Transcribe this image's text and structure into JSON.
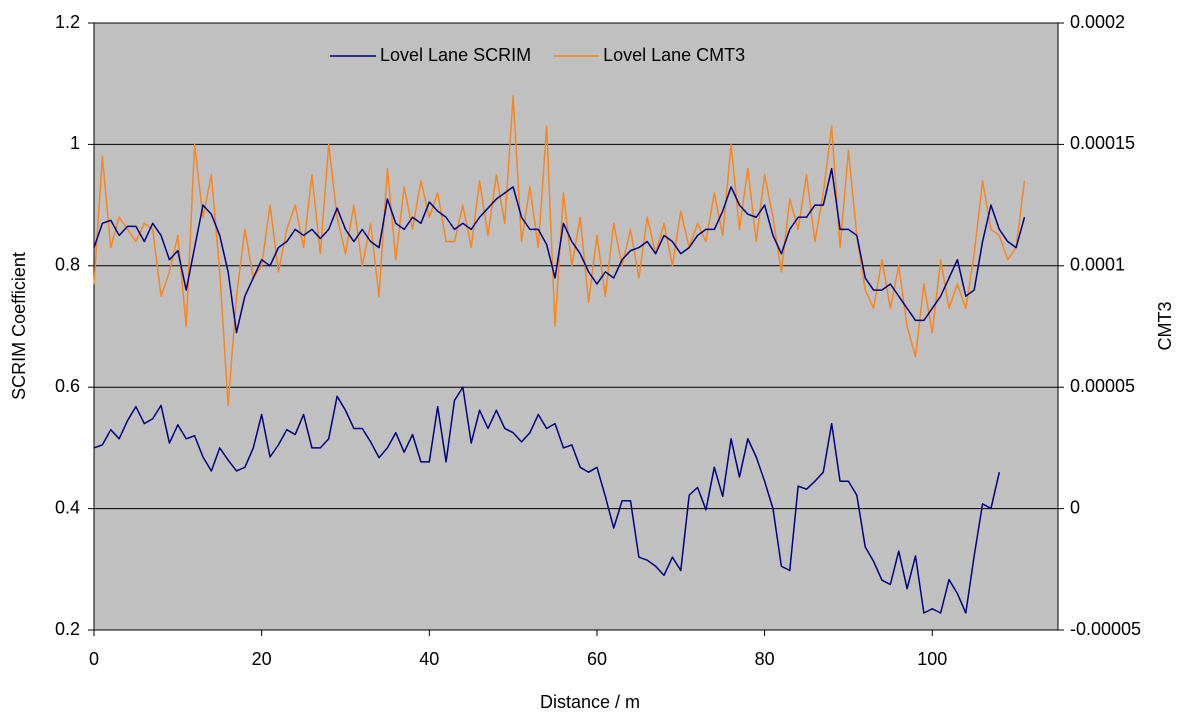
{
  "chart_data": {
    "type": "line",
    "x_label": "Distance / m",
    "y_label": "SCRIM Coefficient",
    "y2_label": "CMT3",
    "x": [
      0,
      1,
      2,
      3,
      4,
      5,
      6,
      7,
      8,
      9,
      10,
      11,
      12,
      13,
      14,
      15,
      16,
      17,
      18,
      19,
      20,
      21,
      22,
      23,
      24,
      25,
      26,
      27,
      28,
      29,
      30,
      31,
      32,
      33,
      34,
      35,
      36,
      37,
      38,
      39,
      40,
      41,
      42,
      43,
      44,
      45,
      46,
      47,
      48,
      49,
      50,
      51,
      52,
      53,
      54,
      55,
      56,
      57,
      58,
      59,
      60,
      61,
      62,
      63,
      64,
      65,
      66,
      67,
      68,
      69,
      70,
      71,
      72,
      73,
      74,
      75,
      76,
      77,
      78,
      79,
      80,
      81,
      82,
      83,
      84,
      85,
      86,
      87,
      88,
      89,
      90,
      91,
      92,
      93,
      94,
      95,
      96,
      97,
      98,
      99,
      100,
      101,
      102,
      103,
      104,
      105,
      106,
      107,
      108,
      109,
      110,
      111
    ],
    "xlim": [
      0,
      115
    ],
    "xticks": [
      0,
      20,
      40,
      60,
      80,
      100
    ],
    "ylim": [
      0.2,
      1.2
    ],
    "yticks": [
      0.2,
      0.4,
      0.6,
      0.8,
      1,
      1.2
    ],
    "y2lim": [
      -5e-05,
      0.0002
    ],
    "y2ticks": [
      -5e-05,
      0,
      5e-05,
      0.0001,
      0.00015,
      0.0002
    ],
    "grid": true,
    "legend": "top",
    "series": [
      {
        "name": "Lovel Lane SCRIM",
        "color": "#000080",
        "values": [
          0.5,
          0.505,
          0.53,
          0.515,
          0.545,
          0.568,
          0.54,
          0.548,
          0.57,
          0.508,
          0.538,
          0.515,
          0.52,
          0.485,
          0.462,
          0.5,
          0.48,
          0.462,
          0.468,
          0.5,
          0.555,
          0.485,
          0.505,
          0.53,
          0.522,
          0.555,
          0.5,
          0.5,
          0.515,
          0.585,
          0.562,
          0.532,
          0.532,
          0.51,
          0.484,
          0.5,
          0.525,
          0.493,
          0.522,
          0.477,
          0.477,
          0.568,
          0.477,
          0.578,
          0.6,
          0.508,
          0.562,
          0.532,
          0.562,
          0.532,
          0.525,
          0.51,
          0.525,
          0.555,
          0.532,
          0.54,
          0.5,
          0.505,
          0.468,
          0.46,
          0.468,
          0.42,
          0.368,
          0.413,
          0.413,
          0.32,
          0.315,
          0.305,
          0.29,
          0.32,
          0.298,
          0.422,
          0.435,
          0.398,
          0.468,
          0.42,
          0.515,
          0.452,
          0.515,
          0.485,
          0.445,
          0.4,
          0.305,
          0.298,
          0.437,
          0.432,
          0.445,
          0.46,
          0.54,
          0.445,
          0.445,
          0.422,
          0.337,
          0.313,
          0.282,
          0.275,
          0.33,
          0.268,
          0.322,
          0.228,
          0.235,
          0.228,
          0.283,
          0.26,
          0.228,
          0.322,
          0.408,
          0.4,
          0.46,
          null,
          null,
          null
        ]
      },
      {
        "name": "Lovel Lane CMT3",
        "color": "#f7861f",
        "axis": "y2",
        "values": [
          9.25e-05,
          0.000145,
          0.0001075,
          0.00012,
          0.000115,
          0.00011,
          0.0001175,
          0.000115,
          8.75e-05,
          9.75e-05,
          0.0001125,
          7.5e-05,
          0.00015,
          0.00012,
          0.0001375,
          9.75e-05,
          4.25e-05,
          8.75e-05,
          0.000115,
          9.5e-05,
          0.0001,
          0.000125,
          9.75e-05,
          0.000115,
          0.000125,
          0.0001075,
          0.0001375,
          0.000105,
          0.00015,
          0.00012,
          0.000105,
          0.000125,
          0.0001,
          0.0001175,
          8.75e-05,
          0.00014,
          0.0001025,
          0.0001325,
          0.000115,
          0.000135,
          0.00012,
          0.00013,
          0.00011,
          0.00011,
          0.000125,
          0.0001075,
          0.000135,
          0.0001125,
          0.0001375,
          0.0001175,
          0.00017,
          0.00011,
          0.0001325,
          0.0001075,
          0.0001575,
          7.5e-05,
          0.00013,
          0.0001,
          0.00012,
          8.5e-05,
          0.0001125,
          8.75e-05,
          0.0001175,
          0.0001,
          0.000115,
          9.5e-05,
          0.00012,
          0.000105,
          0.0001175,
          0.0001,
          0.0001225,
          0.0001075,
          0.0001175,
          0.00011,
          0.00013,
          0.0001125,
          0.00015,
          0.000115,
          0.00014,
          0.00011,
          0.0001375,
          0.00012,
          9.75e-05,
          0.0001275,
          0.000115,
          0.0001375,
          0.00011,
          0.00013,
          0.0001575,
          0.0001075,
          0.0001475,
          0.0001125,
          9e-05,
          8.25e-05,
          0.0001025,
          8.25e-05,
          0.0001,
          7.5e-05,
          6.25e-05,
          9.25e-05,
          7.25e-05,
          0.0001025,
          8.25e-05,
          9.25e-05,
          8.25e-05,
          0.000105,
          0.000135,
          0.000115,
          0.0001125,
          0.0001025,
          0.0001075,
          0.000135
        ]
      },
      {
        "color": "#000080",
        "axis": "y2",
        "values": [
          0.0001075,
          0.0001175,
          0.00011875,
          0.0001125,
          0.00011625,
          0.00011625,
          0.00011,
          0.0001175,
          0.0001125,
          0.0001025,
          0.00010625,
          9e-05,
          0.0001075,
          0.000125,
          0.00012125,
          0.0001125,
          9.75e-05,
          7.25e-05,
          8.75e-05,
          9.5e-05,
          0.0001025,
          0.0001,
          0.0001075,
          0.00011,
          0.000115,
          0.0001125,
          0.000115,
          0.00011125,
          0.000115,
          0.00012375,
          0.000115,
          0.00011,
          0.000115,
          0.00011,
          0.0001075,
          0.0001275,
          0.0001175,
          0.000115,
          0.00012,
          0.0001175,
          0.00012625,
          0.0001225,
          0.00012,
          0.000115,
          0.0001175,
          0.000115,
          0.00012,
          0.00012375,
          0.0001275,
          0.00013,
          0.0001325,
          0.00012,
          0.000115,
          0.000115,
          0.00010875,
          9.5e-05,
          0.0001175,
          0.00011,
          0.000105,
          9.75e-05,
          9.25e-05,
          9.75e-05,
          9.5e-05,
          0.0001025,
          0.00010625,
          0.0001075,
          0.00011,
          0.000105,
          0.0001125,
          0.00011,
          0.000105,
          0.0001075,
          0.0001125,
          0.000115,
          0.000115,
          0.0001225,
          0.0001325,
          0.000125,
          0.00012125,
          0.00012,
          0.000125,
          0.0001125,
          0.000105,
          0.000115,
          0.00012,
          0.00012,
          0.000125,
          0.000125,
          0.00014,
          0.000115,
          0.000115,
          0.0001125,
          9.5e-05,
          9e-05,
          9e-05,
          9.25e-05,
          8.75e-05,
          8.25e-05,
          7.75e-05,
          7.75e-05,
          8.25e-05,
          8.75e-05,
          9.5e-05,
          0.0001025,
          8.75e-05,
          9e-05,
          0.00011,
          0.000125,
          0.000115,
          0.00011,
          0.0001075,
          0.00012
        ]
      }
    ]
  }
}
